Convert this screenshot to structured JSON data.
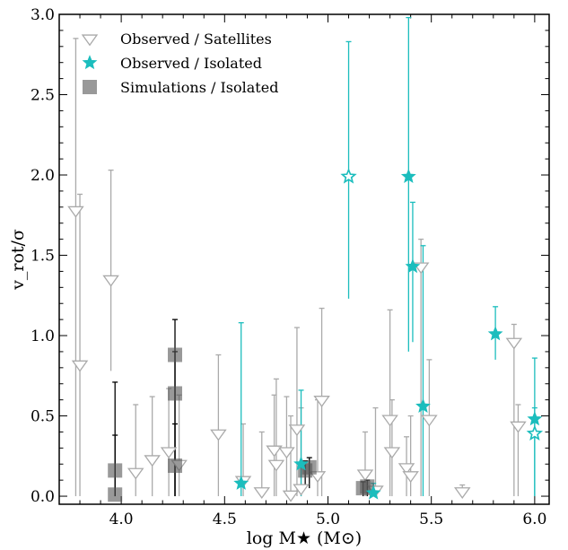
{
  "chart_data": {
    "type": "scatter",
    "xlabel": "log M★ (M⊙)",
    "ylabel": "v_rot/σ",
    "xlim": [
      3.7,
      6.07
    ],
    "ylim": [
      -0.05,
      3.0
    ],
    "xticks": [
      4.0,
      4.5,
      5.0,
      5.5,
      6.0
    ],
    "xtick_labels": [
      "4.0",
      "4.5",
      "5.0",
      "5.5",
      "6.0"
    ],
    "yticks": [
      0.0,
      0.5,
      1.0,
      1.5,
      2.0,
      2.5,
      3.0
    ],
    "ytick_labels": [
      "0.0",
      "0.5",
      "1.0",
      "1.5",
      "2.0",
      "2.5",
      "3.0"
    ],
    "legend_position": "top-left",
    "colors": {
      "satellites": "#aaaaaa",
      "observed_isolated": "#1bbdbd",
      "simulations": "#555555"
    },
    "series": [
      {
        "name": "Observed / Satellites",
        "marker": "triangle-down-open",
        "points": [
          {
            "x": 3.78,
            "y": 1.78,
            "lo": 0.0,
            "hi": 2.85
          },
          {
            "x": 3.8,
            "y": 0.82,
            "lo": 0.0,
            "hi": 1.88
          },
          {
            "x": 3.95,
            "y": 1.35,
            "lo": 0.78,
            "hi": 2.03
          },
          {
            "x": 4.07,
            "y": 0.15,
            "lo": 0.0,
            "hi": 0.57
          },
          {
            "x": 4.15,
            "y": 0.23,
            "lo": 0.0,
            "hi": 0.62
          },
          {
            "x": 4.23,
            "y": 0.28,
            "lo": 0.0,
            "hi": 0.67
          },
          {
            "x": 4.28,
            "y": 0.2,
            "lo": 0.0,
            "hi": 0.63
          },
          {
            "x": 4.47,
            "y": 0.39,
            "lo": 0.0,
            "hi": 0.88
          },
          {
            "x": 4.59,
            "y": 0.1,
            "lo": 0.0,
            "hi": 0.45
          },
          {
            "x": 4.68,
            "y": 0.03,
            "lo": 0.0,
            "hi": 0.4
          },
          {
            "x": 4.74,
            "y": 0.29,
            "lo": 0.0,
            "hi": 0.63
          },
          {
            "x": 4.75,
            "y": 0.2,
            "lo": 0.0,
            "hi": 0.73
          },
          {
            "x": 4.8,
            "y": 0.28,
            "lo": 0.0,
            "hi": 0.62
          },
          {
            "x": 4.82,
            "y": 0.01,
            "lo": 0.0,
            "hi": 0.5
          },
          {
            "x": 4.85,
            "y": 0.42,
            "lo": 0.0,
            "hi": 1.05
          },
          {
            "x": 4.87,
            "y": 0.05,
            "lo": 0.0,
            "hi": 0.55
          },
          {
            "x": 4.95,
            "y": 0.13,
            "lo": 0.0,
            "hi": 0.6
          },
          {
            "x": 4.97,
            "y": 0.6,
            "lo": 0.0,
            "hi": 1.17
          },
          {
            "x": 5.18,
            "y": 0.14,
            "lo": 0.0,
            "hi": 0.4
          },
          {
            "x": 5.23,
            "y": 0.04,
            "lo": 0.0,
            "hi": 0.55
          },
          {
            "x": 5.3,
            "y": 0.48,
            "lo": 0.0,
            "hi": 1.16
          },
          {
            "x": 5.31,
            "y": 0.28,
            "lo": 0.0,
            "hi": 0.6
          },
          {
            "x": 5.38,
            "y": 0.18,
            "lo": 0.0,
            "hi": 0.37
          },
          {
            "x": 5.4,
            "y": 0.13,
            "lo": 0.0,
            "hi": 0.5
          },
          {
            "x": 5.45,
            "y": 1.43,
            "lo": 0.0,
            "hi": 1.6
          },
          {
            "x": 5.49,
            "y": 0.48,
            "lo": 0.0,
            "hi": 0.85
          },
          {
            "x": 5.65,
            "y": 0.03,
            "lo": 0.0,
            "hi": 0.07
          },
          {
            "x": 5.9,
            "y": 0.96,
            "lo": 0.0,
            "hi": 1.07
          },
          {
            "x": 5.92,
            "y": 0.44,
            "lo": 0.0,
            "hi": 0.57
          }
        ]
      },
      {
        "name": "Observed / Isolated",
        "marker": "star",
        "points": [
          {
            "x": 5.1,
            "y": 1.99,
            "lo": 1.23,
            "hi": 2.83,
            "filled": false
          },
          {
            "x": 5.39,
            "y": 1.99,
            "lo": 0.9,
            "hi": 2.98,
            "filled": true
          },
          {
            "x": 5.41,
            "y": 1.43,
            "lo": 0.96,
            "hi": 1.83,
            "filled": true
          },
          {
            "x": 5.46,
            "y": 0.56,
            "lo": 0.0,
            "hi": 1.56,
            "filled": true
          },
          {
            "x": 4.58,
            "y": 0.08,
            "lo": 0.0,
            "hi": 1.08,
            "filled": true
          },
          {
            "x": 4.87,
            "y": 0.2,
            "lo": 0.0,
            "hi": 0.66,
            "filled": true
          },
          {
            "x": 5.22,
            "y": 0.02,
            "lo": 0.0,
            "hi": 0.08,
            "filled": true
          },
          {
            "x": 5.81,
            "y": 1.01,
            "lo": 0.85,
            "hi": 1.18,
            "filled": true
          },
          {
            "x": 6.0,
            "y": 0.48,
            "lo": 0.0,
            "hi": 0.86,
            "filled": true
          },
          {
            "x": 6.0,
            "y": 0.39,
            "lo": 0.0,
            "hi": 0.55,
            "filled": false
          }
        ]
      },
      {
        "name": "Simulations / Isolated",
        "marker": "square",
        "points": [
          {
            "x": 3.97,
            "y": 0.16,
            "lo": 0.0,
            "hi": 0.71
          },
          {
            "x": 3.97,
            "y": 0.01,
            "lo": 0.0,
            "hi": 0.38
          },
          {
            "x": 4.26,
            "y": 0.88,
            "lo": 0.0,
            "hi": 1.1
          },
          {
            "x": 4.26,
            "y": 0.64,
            "lo": 0.0,
            "hi": 0.9
          },
          {
            "x": 4.26,
            "y": 0.19,
            "lo": 0.0,
            "hi": 0.45
          },
          {
            "x": 4.89,
            "y": 0.16,
            "lo": 0.05,
            "hi": 0.22
          },
          {
            "x": 4.91,
            "y": 0.18,
            "lo": 0.05,
            "hi": 0.24
          },
          {
            "x": 5.17,
            "y": 0.05,
            "lo": 0.0,
            "hi": 0.09
          },
          {
            "x": 5.19,
            "y": 0.06,
            "lo": 0.0,
            "hi": 0.1
          }
        ]
      }
    ]
  }
}
